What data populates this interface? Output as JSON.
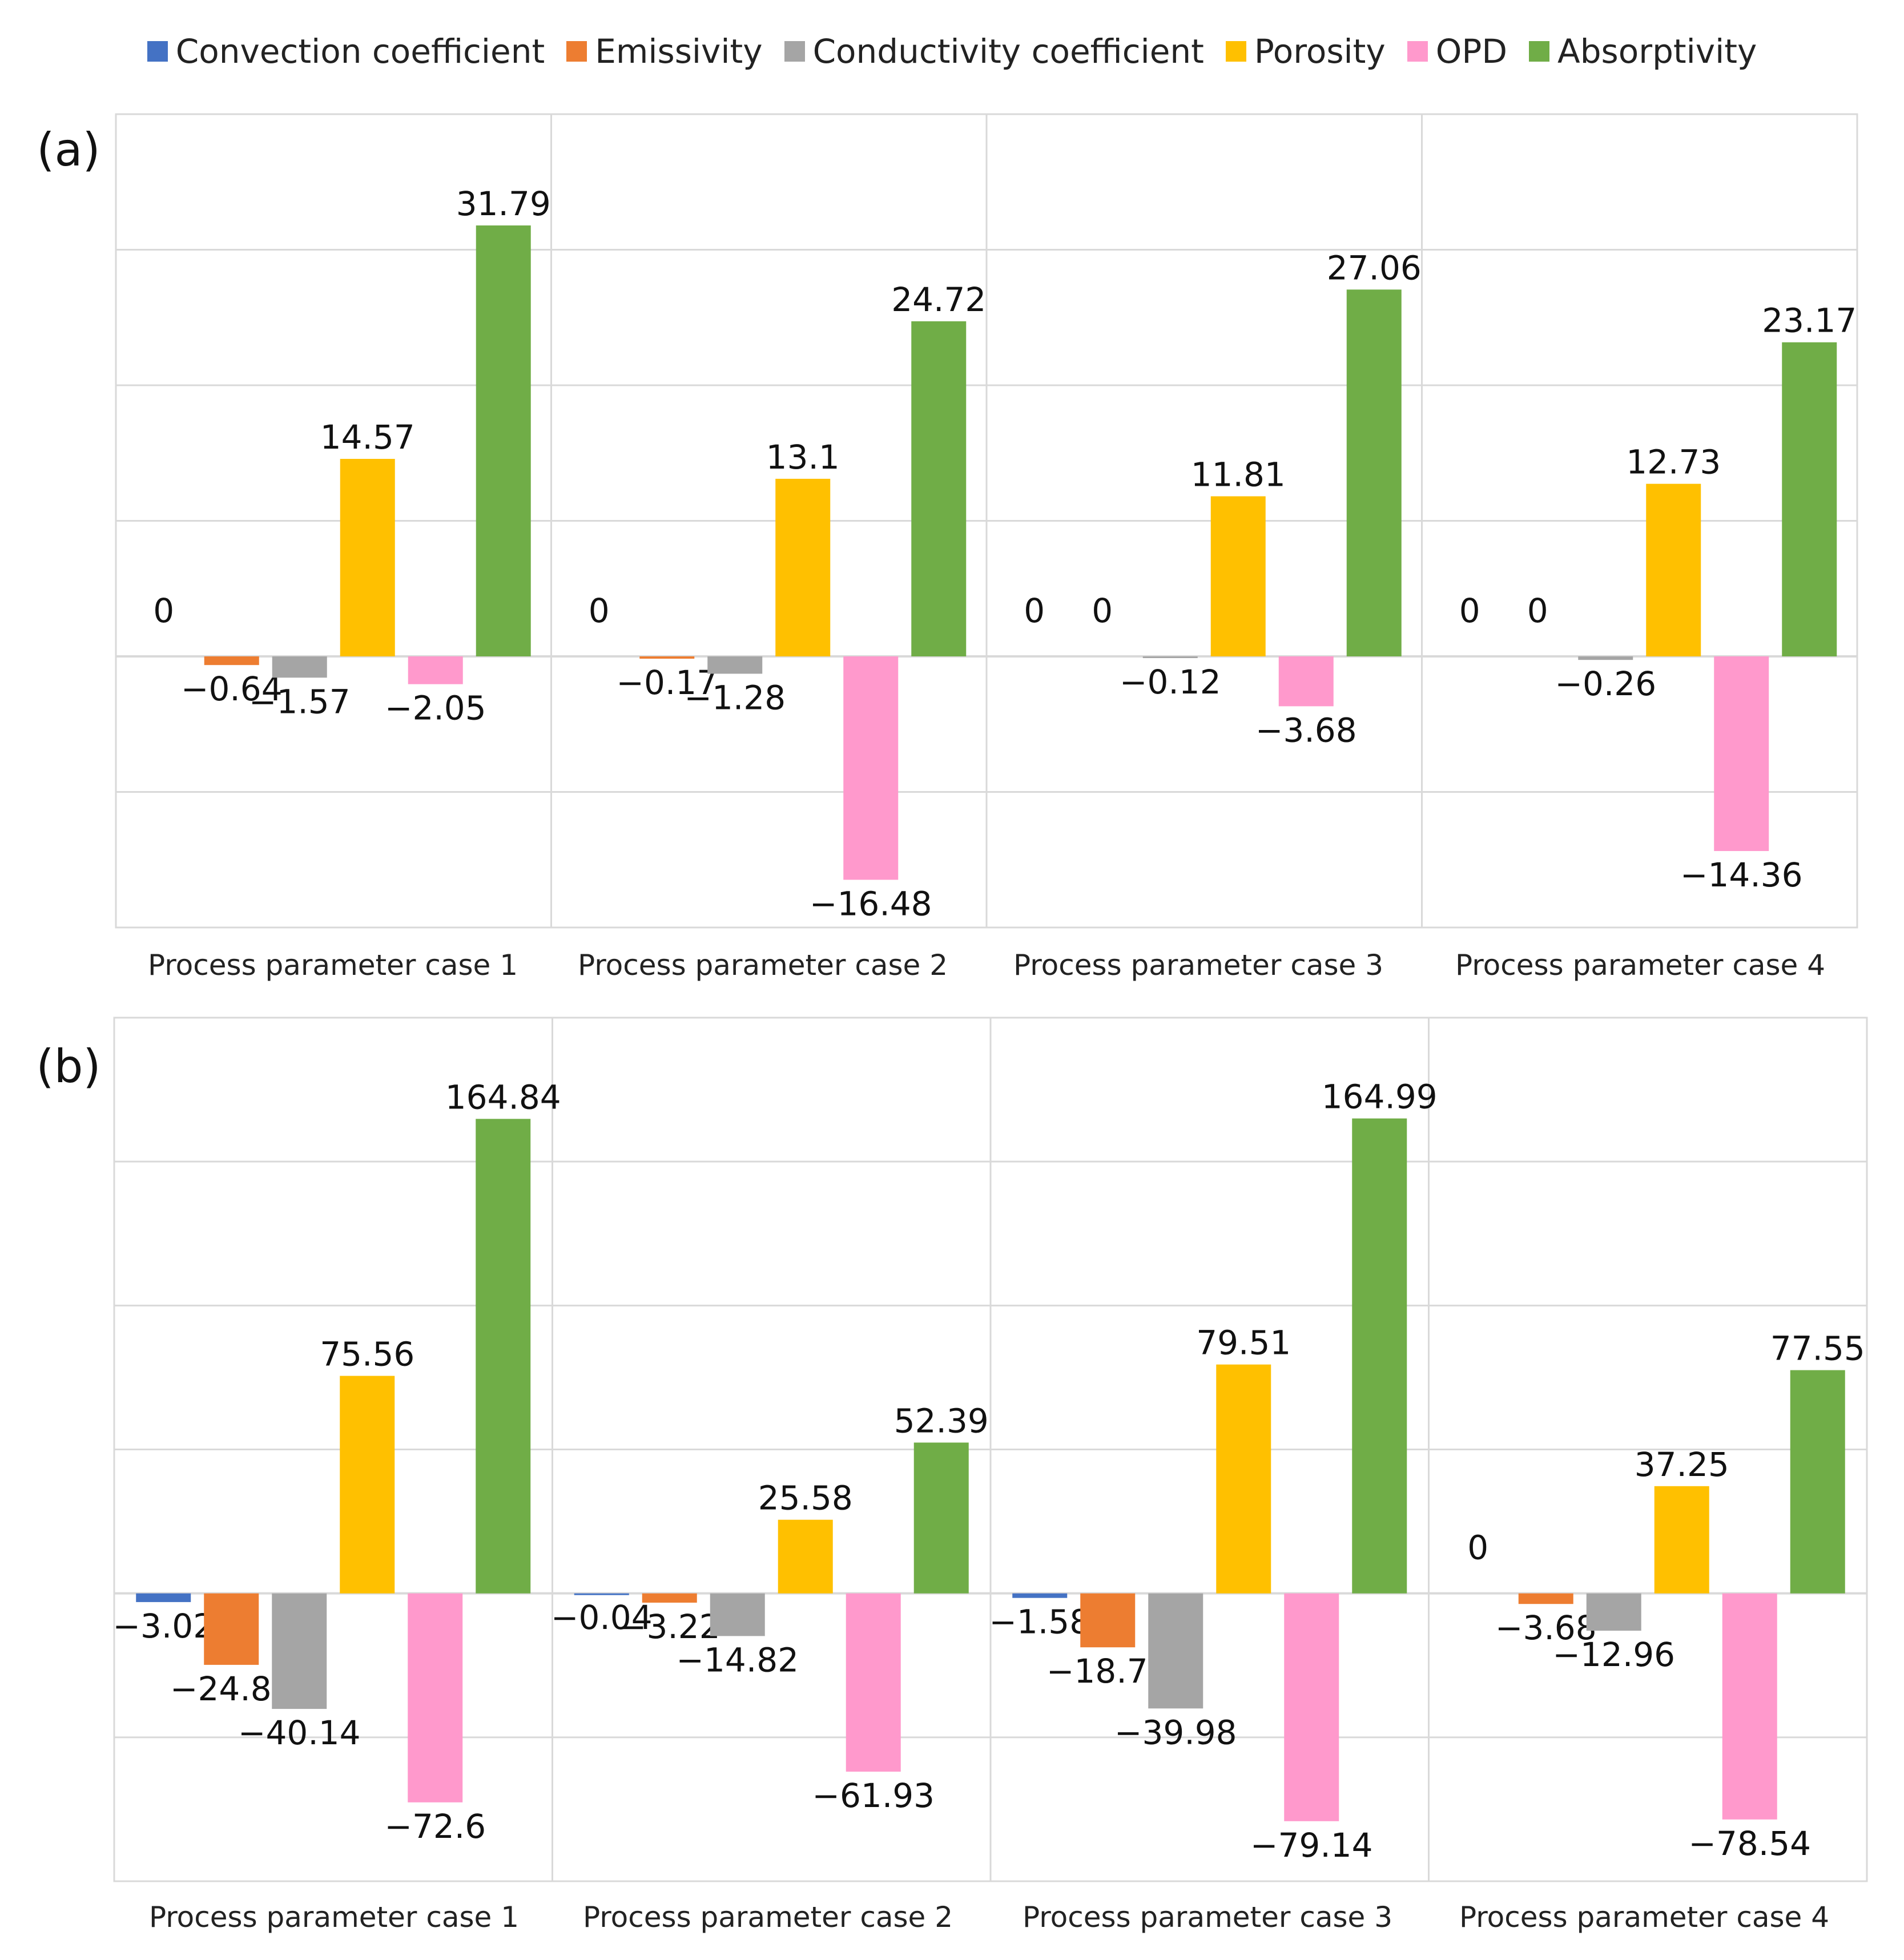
{
  "colors": {
    "Convection coefficient": "#4472C4",
    "Emissivity": "#ED7D31",
    "Conductivity coefficient": "#A5A5A5",
    "Porosity": "#FFC000",
    "OPD": "#FF99CC",
    "Absorptivity": "#70AD47"
  },
  "legend": [
    "Convection coefficient",
    "Emissivity",
    "Conductivity coefficient",
    "Porosity",
    "OPD",
    "Absorptivity"
  ],
  "chart_data": [
    {
      "type": "bar",
      "panel": "(a)",
      "categories": [
        "Process parameter case 1",
        "Process parameter case 2",
        "Process parameter case 3",
        "Process parameter case 4"
      ],
      "series": [
        {
          "name": "Convection coefficient",
          "values": [
            0,
            0,
            0,
            0
          ],
          "labels": [
            "0",
            "0",
            "0",
            "0"
          ]
        },
        {
          "name": "Emissivity",
          "values": [
            -0.64,
            -0.17,
            0,
            0
          ],
          "labels": [
            "−0.64",
            "−0.17",
            "0",
            "0"
          ]
        },
        {
          "name": "Conductivity coefficient",
          "values": [
            -1.57,
            -1.28,
            -0.12,
            -0.26
          ],
          "labels": [
            "−1.57",
            "−1.28",
            "−0.12",
            "−0.26"
          ]
        },
        {
          "name": "Porosity",
          "values": [
            14.57,
            13.1,
            11.81,
            12.73
          ],
          "labels": [
            "14.57",
            "13.1",
            "11.81",
            "12.73"
          ]
        },
        {
          "name": "OPD",
          "values": [
            -2.05,
            -16.48,
            -3.68,
            -14.36
          ],
          "labels": [
            "−2.05",
            "−16.48",
            "−3.68",
            "−14.36"
          ]
        },
        {
          "name": "Absorptivity",
          "values": [
            31.79,
            24.72,
            27.06,
            23.17
          ],
          "labels": [
            "31.79",
            "24.72",
            "27.06",
            "23.17"
          ]
        }
      ],
      "ylim": [
        -20,
        40
      ],
      "grid": true
    },
    {
      "type": "bar",
      "panel": "(b)",
      "categories": [
        "Process parameter case 1",
        "Process parameter case 2",
        "Process parameter case 3",
        "Process parameter case 4"
      ],
      "series": [
        {
          "name": "Convection coefficient",
          "values": [
            -3.02,
            -0.04,
            -1.58,
            0
          ],
          "labels": [
            "−3.02",
            "−0.04",
            "−1.58",
            "0"
          ]
        },
        {
          "name": "Emissivity",
          "values": [
            -24.83,
            -3.22,
            -18.74,
            -3.68
          ],
          "labels": [
            "−24.83",
            "−3.22",
            "−18.74",
            "−3.68"
          ]
        },
        {
          "name": "Conductivity coefficient",
          "values": [
            -40.14,
            -14.82,
            -39.98,
            -12.96
          ],
          "labels": [
            "−40.14",
            "−14.82",
            "−39.98",
            "−12.96"
          ]
        },
        {
          "name": "Porosity",
          "values": [
            75.56,
            25.58,
            79.51,
            37.25
          ],
          "labels": [
            "75.56",
            "25.58",
            "79.51",
            "37.25"
          ]
        },
        {
          "name": "OPD",
          "values": [
            -72.6,
            -61.93,
            -79.14,
            -78.54
          ],
          "labels": [
            "−72.6",
            "−61.93",
            "−79.14",
            "−78.54"
          ]
        },
        {
          "name": "Absorptivity",
          "values": [
            164.84,
            52.39,
            164.99,
            77.55
          ],
          "labels": [
            "164.84",
            "52.39",
            "164.99",
            "77.55"
          ]
        }
      ],
      "ylim": [
        -100,
        200
      ],
      "grid": true
    }
  ]
}
